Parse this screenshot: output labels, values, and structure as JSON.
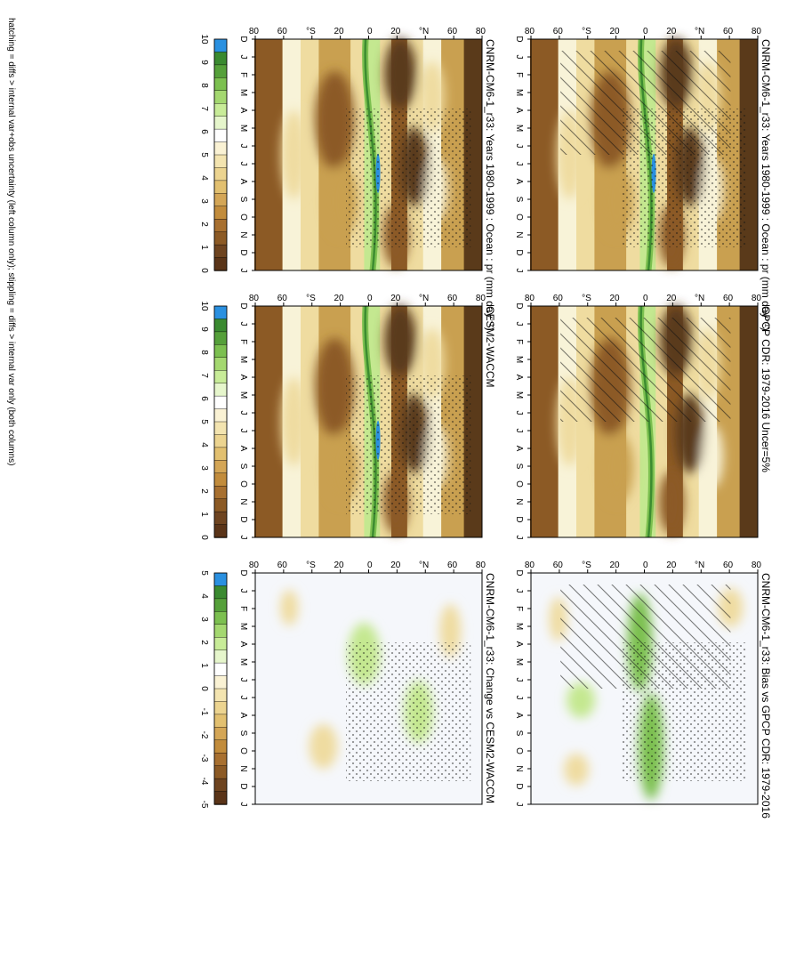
{
  "months": [
    "D",
    "J",
    "F",
    "M",
    "A",
    "M",
    "J",
    "J",
    "A",
    "S",
    "O",
    "N",
    "D",
    "J"
  ],
  "lat_ticks": [
    "80",
    "60",
    "°N",
    "20",
    "0",
    "20",
    "°S",
    "60",
    "80"
  ],
  "colors": {
    "brown_dark": "#5a3a1a",
    "brown": "#8c5a25",
    "tan": "#c9a050",
    "light_tan": "#efdca0",
    "cream": "#f8f3d8",
    "pale": "#f5f7fb",
    "light_green": "#c4e890",
    "green": "#7cc050",
    "dark_green": "#3c8c30",
    "blue": "#2a90e0"
  },
  "colorbars": {
    "abs": {
      "labels": [
        "10",
        "9",
        "8",
        "7",
        "6",
        "5",
        "4",
        "3",
        "2",
        "1",
        "0"
      ],
      "colors": [
        "#2a90e0",
        "#3a8a30",
        "#55a03a",
        "#7cc050",
        "#a4d870",
        "#c8ec98",
        "#e6f6cc",
        "#ffffff",
        "#faf2d4",
        "#f3e4b0",
        "#ecd490",
        "#e2c070",
        "#d4a656",
        "#c28c3c",
        "#a87030",
        "#8c5a25",
        "#6e4420",
        "#5a3418"
      ]
    },
    "diff": {
      "labels": [
        "5",
        "4",
        "3",
        "2",
        "1",
        "0",
        "-1",
        "-2",
        "-3",
        "-4",
        "-5"
      ],
      "colors": [
        "#2a90e0",
        "#3a8a30",
        "#55a03a",
        "#7cc050",
        "#a4d870",
        "#c8ec98",
        "#e6f6cc",
        "#ffffff",
        "#faf2d4",
        "#f3e4b0",
        "#ecd490",
        "#e2c070",
        "#d4a656",
        "#c28c3c",
        "#a87030",
        "#8c5a25",
        "#6e4420",
        "#5a3418"
      ]
    }
  },
  "footer": "hatching = diffs > internal var+obs uncertainty (left column only); stippling = diffs > internal var only (both columns)",
  "chart_data": [
    {
      "type": "heatmap",
      "title": "CNRM-CM6-1_r33: Years 1980-1999 : Ocean : pr (mm day⁻¹)",
      "x": [
        "D",
        "J",
        "F",
        "M",
        "A",
        "M",
        "J",
        "J",
        "A",
        "S",
        "O",
        "N",
        "D",
        "J"
      ],
      "y_ticks": [
        "80",
        "60",
        "°N",
        "20",
        "0",
        "20",
        "°S",
        "60",
        "80"
      ],
      "colorbar": "abs",
      "hatching": true,
      "stippling": true,
      "description_values": {
        "itcz_max": 10,
        "subtropics_min": 0.5
      }
    },
    {
      "type": "heatmap",
      "title": "CNRM-CM6-1_r33: Years 1980-1999 : Ocean : pr (mm day⁻¹)",
      "x": [
        "D",
        "J",
        "F",
        "M",
        "A",
        "M",
        "J",
        "J",
        "A",
        "S",
        "O",
        "N",
        "D",
        "J"
      ],
      "y_ticks": [
        "80",
        "60",
        "°N",
        "20",
        "0",
        "20",
        "°S",
        "60",
        "80"
      ],
      "colorbar": "abs",
      "stippling": true,
      "description_values": {
        "itcz_max": 10,
        "subtropics_min": 0.5
      }
    },
    {
      "type": "heatmap",
      "title": "GPCP CDR: 1979-2016 Uncer=5%",
      "x": [
        "D",
        "J",
        "F",
        "M",
        "A",
        "M",
        "J",
        "J",
        "A",
        "S",
        "O",
        "N",
        "D",
        "J"
      ],
      "y_ticks": [
        "80",
        "60",
        "°N",
        "20",
        "0",
        "20",
        "°S",
        "60",
        "80"
      ],
      "colorbar": "abs",
      "hatching": true,
      "description_values": {
        "itcz_max": 7,
        "subtropics_min": 1
      }
    },
    {
      "type": "heatmap",
      "title": "CESM2-WACCM",
      "x": [
        "D",
        "J",
        "F",
        "M",
        "A",
        "M",
        "J",
        "J",
        "A",
        "S",
        "O",
        "N",
        "D",
        "J"
      ],
      "y_ticks": [
        "80",
        "60",
        "°N",
        "20",
        "0",
        "20",
        "°S",
        "60",
        "80"
      ],
      "colorbar": "abs",
      "stippling": true,
      "description_values": {
        "itcz_max": 10,
        "subtropics_min": 0.5
      }
    },
    {
      "type": "heatmap",
      "title": "CNRM-CM6-1_r33: Bias vs GPCP CDR: 1979-2016",
      "x": [
        "D",
        "J",
        "F",
        "M",
        "A",
        "M",
        "J",
        "J",
        "A",
        "S",
        "O",
        "N",
        "D",
        "J"
      ],
      "y_ticks": [
        "80",
        "60",
        "°N",
        "20",
        "0",
        "20",
        "°S",
        "60",
        "80"
      ],
      "colorbar": "diff",
      "hatching": true,
      "stippling": true,
      "description_values": {
        "max_positive": 3,
        "max_negative": -1
      }
    },
    {
      "type": "heatmap",
      "title": "CNRM-CM6-1_r33: Change vs CESM2-WACCM",
      "x": [
        "D",
        "J",
        "F",
        "M",
        "A",
        "M",
        "J",
        "J",
        "A",
        "S",
        "O",
        "N",
        "D",
        "J"
      ],
      "y_ticks": [
        "80",
        "60",
        "°N",
        "20",
        "0",
        "20",
        "°S",
        "60",
        "80"
      ],
      "colorbar": "diff",
      "stippling": true,
      "description_values": {
        "max_positive": 2,
        "max_negative": -1
      }
    }
  ]
}
